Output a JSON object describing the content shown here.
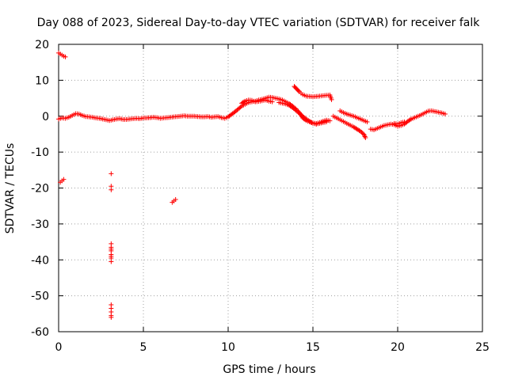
{
  "chart_data": {
    "type": "scatter",
    "title": "Day 088 of 2023, Sidereal Day-to-day VTEC variation (SDTVAR) for receiver falk",
    "xlabel": "GPS time / hours",
    "ylabel": "SDTVAR / TECUs",
    "xlim": [
      0,
      25
    ],
    "ylim": [
      -60,
      20
    ],
    "xticks": [
      0,
      5,
      10,
      15,
      20,
      25
    ],
    "yticks": [
      -60,
      -50,
      -40,
      -30,
      -20,
      -10,
      0,
      10,
      20
    ],
    "grid": true,
    "marker": "+",
    "color": "#ff0000",
    "segments": [
      {
        "x": [
          0.0,
          0.1,
          0.2,
          0.3,
          0.4
        ],
        "y": [
          17.6,
          17.3,
          17.0,
          16.7,
          16.5
        ]
      },
      {
        "x": [
          0.1,
          0.2,
          0.3
        ],
        "y": [
          -18.4,
          -18.0,
          -17.6
        ]
      },
      {
        "x": [
          6.7,
          6.8,
          6.9
        ],
        "y": [
          -24.0,
          -23.6,
          -23.2
        ]
      },
      {
        "x": [
          3.1,
          3.1,
          3.1,
          3.1,
          3.1,
          3.1,
          3.1,
          3.1,
          3.1,
          3.1,
          3.1,
          3.1,
          3.1,
          3.1,
          3.1,
          3.1
        ],
        "y": [
          -16,
          -19.5,
          -20.5,
          -35.5,
          -36.5,
          -37.5,
          -38.5,
          -39.5,
          -40.5,
          -52.5,
          -53.5,
          -54.5,
          -55.5,
          -56,
          -37,
          -39
        ]
      },
      {
        "x": [
          0.0,
          0.2,
          0.4,
          0.6,
          0.8,
          1.0,
          1.2,
          1.4,
          1.6,
          1.8,
          2.0,
          2.2,
          2.4,
          2.6,
          2.8,
          3.0,
          3.2,
          3.4,
          3.6,
          3.8,
          4.0,
          4.2,
          4.4,
          4.6,
          4.8,
          5.0,
          5.2,
          5.4,
          5.6,
          5.8,
          6.0,
          6.2,
          6.4,
          6.6,
          6.8,
          7.0,
          7.2,
          7.4,
          7.6,
          7.8,
          8.0,
          8.2,
          8.4,
          8.6,
          8.8,
          9.0,
          9.2,
          9.4,
          9.6,
          9.8,
          10.0,
          10.2,
          10.4,
          10.6,
          10.8,
          11.0,
          11.2,
          11.4,
          11.6,
          11.8,
          12.0,
          12.2,
          12.4,
          12.6,
          12.8,
          13.0,
          13.2,
          13.4,
          13.6,
          13.8,
          14.0,
          14.2,
          14.4,
          14.6,
          14.8,
          15.0,
          15.2,
          15.4,
          15.6,
          15.8
        ],
        "y": [
          -0.8,
          -0.5,
          -0.6,
          -0.3,
          0.2,
          0.7,
          0.6,
          0.2,
          -0.1,
          -0.2,
          -0.3,
          -0.5,
          -0.6,
          -0.8,
          -1.0,
          -1.2,
          -1.0,
          -0.8,
          -0.7,
          -0.9,
          -0.9,
          -0.8,
          -0.7,
          -0.6,
          -0.7,
          -0.5,
          -0.5,
          -0.4,
          -0.3,
          -0.4,
          -0.6,
          -0.5,
          -0.4,
          -0.3,
          -0.2,
          -0.1,
          0.0,
          0.1,
          0.0,
          0.0,
          0.0,
          -0.1,
          -0.2,
          -0.2,
          -0.1,
          -0.3,
          -0.2,
          -0.1,
          -0.4,
          -0.6,
          -0.2,
          0.5,
          1.2,
          2.0,
          2.8,
          3.3,
          3.8,
          4.0,
          4.2,
          4.5,
          4.7,
          5.0,
          5.3,
          5.2,
          5.0,
          4.8,
          4.5,
          4.0,
          3.5,
          2.8,
          2.0,
          1.0,
          -0.5,
          -1.2,
          -1.6,
          -1.9,
          -2.0,
          -1.8,
          -1.5,
          -1.3
        ]
      },
      {
        "x": [
          13.0,
          13.2,
          13.4,
          13.6,
          13.8,
          14.0,
          14.2,
          14.4,
          14.6,
          14.8,
          15.0,
          15.2,
          15.4,
          15.6,
          15.8
        ],
        "y": [
          3.8,
          3.6,
          3.4,
          3.0,
          2.4,
          1.6,
          0.8,
          0.0,
          -0.8,
          -1.4,
          -2.0,
          -2.2,
          -2.0,
          -1.8,
          -1.6
        ]
      },
      {
        "x": [
          10.8,
          11.0,
          11.2,
          11.4,
          11.6,
          11.8,
          12.0,
          12.2,
          12.4,
          12.6
        ],
        "y": [
          3.6,
          4.2,
          4.5,
          4.4,
          4.0,
          4.1,
          4.3,
          4.5,
          4.2,
          4.0
        ]
      },
      {
        "x": [
          13.9,
          14.0,
          14.1,
          14.2,
          14.3,
          14.4,
          14.5,
          14.6,
          14.8,
          15.0,
          15.2,
          15.4,
          15.6,
          15.8,
          16.0,
          16.1
        ],
        "y": [
          8.3,
          7.8,
          7.3,
          6.8,
          6.4,
          6.0,
          5.8,
          5.6,
          5.5,
          5.4,
          5.5,
          5.6,
          5.7,
          5.8,
          5.9,
          4.6
        ]
      },
      {
        "x": [
          15.2,
          15.4,
          15.6,
          15.8,
          16.0
        ],
        "y": [
          -2.2,
          -1.8,
          -1.4,
          -1.1,
          -1.3
        ]
      },
      {
        "x": [
          16.2,
          16.4,
          16.6,
          16.8,
          17.0,
          17.2,
          17.4,
          17.6,
          17.8,
          18.0,
          18.1
        ],
        "y": [
          0.0,
          -0.5,
          -1.0,
          -1.5,
          -2.0,
          -2.5,
          -3.0,
          -3.6,
          -4.2,
          -5.0,
          -6.0
        ]
      },
      {
        "x": [
          16.6,
          16.8,
          17.0,
          17.2,
          17.4,
          17.6,
          17.8,
          18.0,
          18.2
        ],
        "y": [
          1.5,
          1.0,
          0.6,
          0.3,
          0.0,
          -0.4,
          -0.8,
          -1.2,
          -1.6
        ]
      },
      {
        "x": [
          18.4,
          18.6,
          18.8,
          19.0,
          19.2,
          19.4,
          19.6,
          19.8,
          20.0,
          20.2,
          20.4,
          20.6,
          20.8,
          21.0,
          21.2,
          21.4,
          21.6,
          21.8,
          22.0,
          22.2,
          22.4,
          22.6,
          22.8
        ],
        "y": [
          -3.6,
          -3.8,
          -3.4,
          -3.0,
          -2.6,
          -2.4,
          -2.2,
          -2.4,
          -2.8,
          -2.6,
          -2.2,
          -1.4,
          -0.8,
          -0.4,
          0.0,
          0.4,
          0.9,
          1.4,
          1.5,
          1.3,
          1.1,
          0.9,
          0.6
        ]
      },
      {
        "x": [
          19.8,
          20.0,
          20.2,
          20.4
        ],
        "y": [
          -2.0,
          -2.2,
          -1.8,
          -1.6
        ]
      }
    ]
  }
}
